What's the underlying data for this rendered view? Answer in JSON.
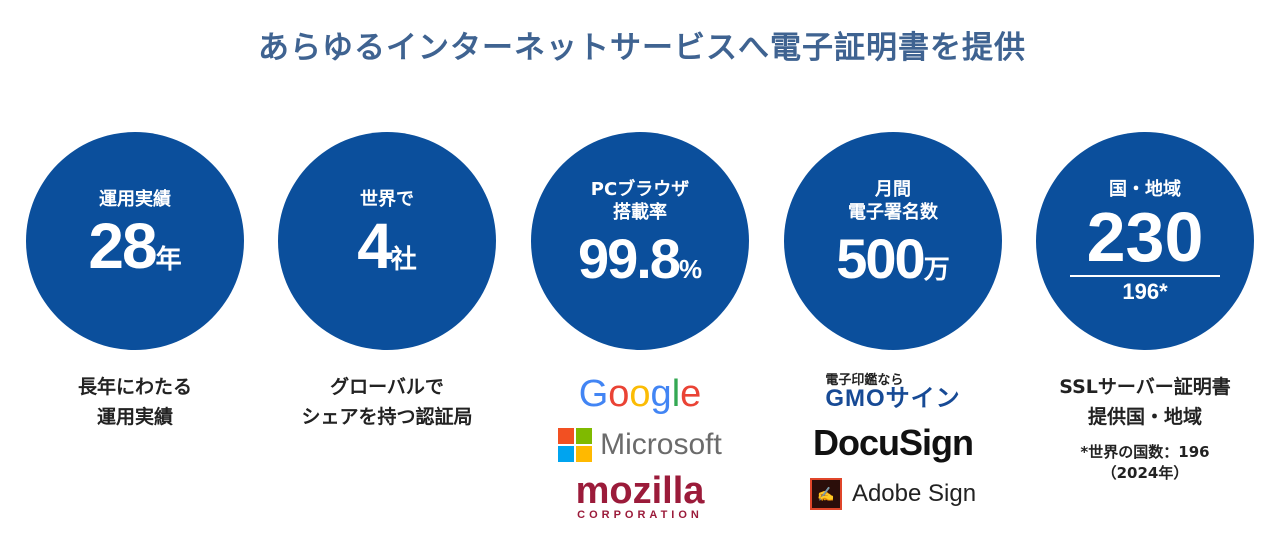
{
  "title": "あらゆるインターネットサービスへ電子証明書を提供",
  "stats": [
    {
      "label": "運用実績",
      "value": "28",
      "unit": "年",
      "desc": [
        "長年にわたる",
        "運用実績"
      ]
    },
    {
      "label": "世界で",
      "value": "4",
      "unit": "社",
      "desc": [
        "グローバルで",
        "シェアを持つ認証局"
      ]
    },
    {
      "label": [
        "PCブラウザ",
        "搭載率"
      ],
      "value": "99.8",
      "unit": "%",
      "logos": [
        "Google",
        "Microsoft",
        "mozilla",
        "CORPORATION"
      ]
    },
    {
      "label": [
        "月間",
        "電子署名数"
      ],
      "value": "500",
      "unit": "万",
      "logos": [
        "電子印鑑なら",
        "GMOサイン",
        "DocuSign",
        "Adobe Sign"
      ]
    },
    {
      "label": "国・地域",
      "value": "230",
      "sub": "196*",
      "desc": [
        "SSLサーバー証明書",
        "提供国・地域"
      ],
      "note": [
        "*世界の国数：196",
        "（2024年）"
      ]
    }
  ],
  "colors": {
    "circle": "#0b4f9c",
    "title": "#3f6391"
  }
}
